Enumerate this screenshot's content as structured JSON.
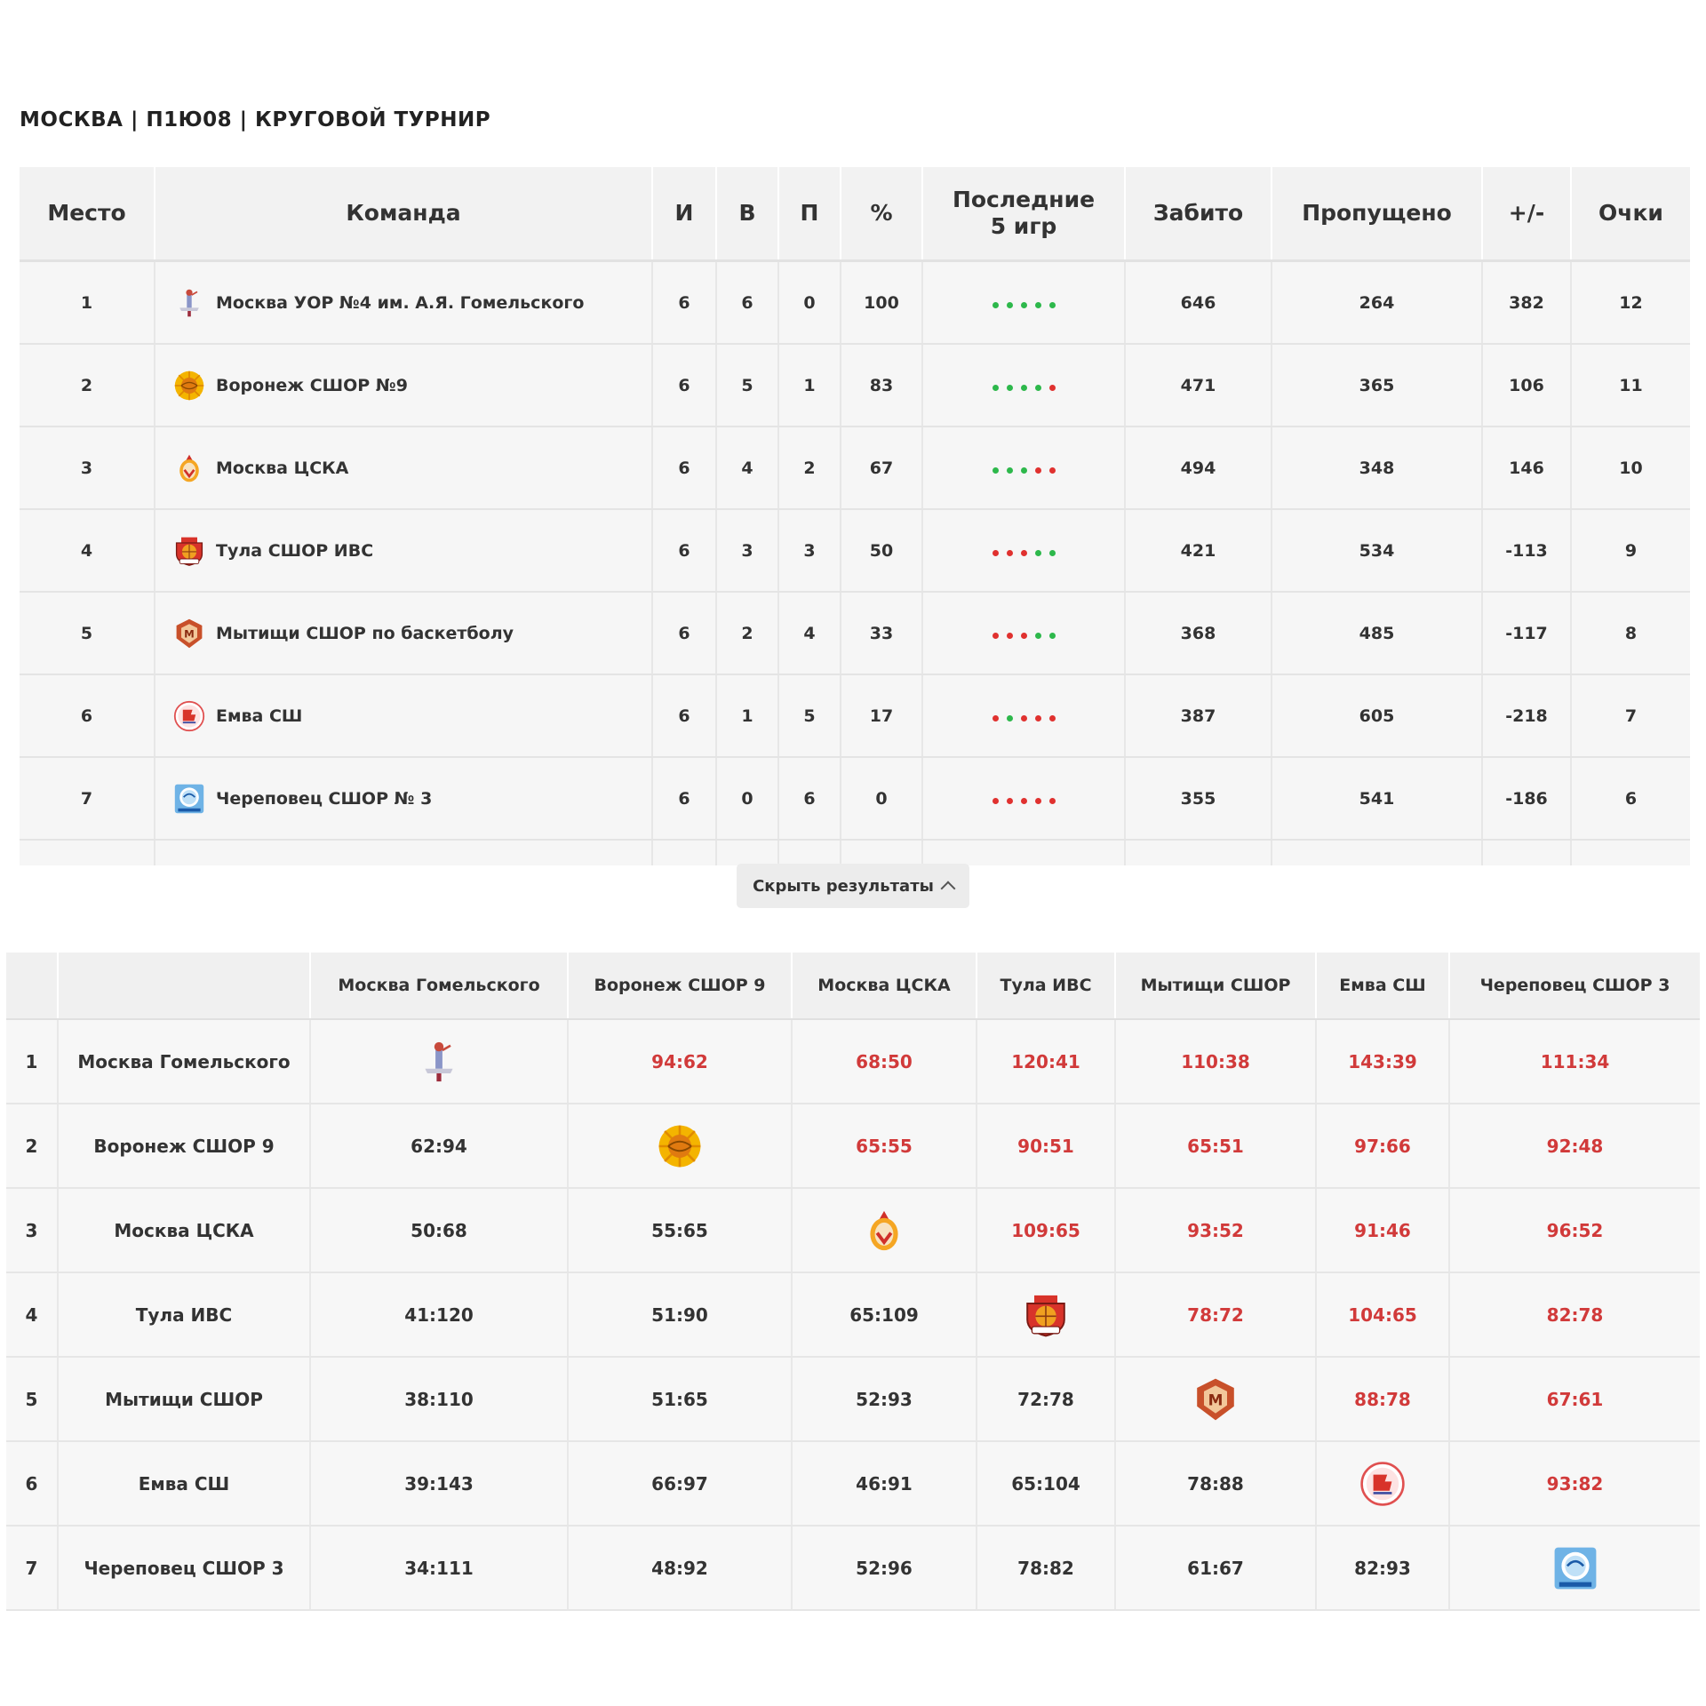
{
  "title": "МОСКВА | П1Ю08 | КРУГОВОЙ ТУРНИР",
  "standings": {
    "headers": {
      "place": "Место",
      "team": "Команда",
      "games": "И",
      "wins": "В",
      "losses": "П",
      "pct": "%",
      "last5_line1": "Последние",
      "last5_line2": "5 игр",
      "scored": "Забито",
      "conceded": "Пропущено",
      "diff": "+/-",
      "points": "Очки"
    },
    "rows": [
      {
        "place": "1",
        "logo": "gomelsky-logo",
        "team": "Москва УОР №4 им. А.Я. Гомельского",
        "games": "6",
        "wins": "6",
        "losses": "0",
        "pct": "100",
        "last5": [
          "W",
          "W",
          "W",
          "W",
          "W"
        ],
        "scored": "646",
        "conceded": "264",
        "diff": "382",
        "points": "12"
      },
      {
        "place": "2",
        "logo": "voronezh-logo",
        "team": "Воронеж СШОР №9",
        "games": "6",
        "wins": "5",
        "losses": "1",
        "pct": "83",
        "last5": [
          "W",
          "W",
          "W",
          "W",
          "L"
        ],
        "scored": "471",
        "conceded": "365",
        "diff": "106",
        "points": "11"
      },
      {
        "place": "3",
        "logo": "cska-logo",
        "team": "Москва ЦСКА",
        "games": "6",
        "wins": "4",
        "losses": "2",
        "pct": "67",
        "last5": [
          "W",
          "W",
          "W",
          "L",
          "L"
        ],
        "scored": "494",
        "conceded": "348",
        "diff": "146",
        "points": "10"
      },
      {
        "place": "4",
        "logo": "tula-logo",
        "team": "Тула СШОР ИВС",
        "games": "6",
        "wins": "3",
        "losses": "3",
        "pct": "50",
        "last5": [
          "L",
          "L",
          "L",
          "W",
          "W"
        ],
        "scored": "421",
        "conceded": "534",
        "diff": "-113",
        "points": "9"
      },
      {
        "place": "5",
        "logo": "mytishchi-logo",
        "team": "Мытищи СШОР по баскетболу",
        "games": "6",
        "wins": "2",
        "losses": "4",
        "pct": "33",
        "last5": [
          "L",
          "L",
          "L",
          "W",
          "W"
        ],
        "scored": "368",
        "conceded": "485",
        "diff": "-117",
        "points": "8"
      },
      {
        "place": "6",
        "logo": "emva-logo",
        "team": "Емва СШ",
        "games": "6",
        "wins": "1",
        "losses": "5",
        "pct": "17",
        "last5": [
          "L",
          "W",
          "L",
          "L",
          "L"
        ],
        "scored": "387",
        "conceded": "605",
        "diff": "-218",
        "points": "7"
      },
      {
        "place": "7",
        "logo": "cherepovets-logo",
        "team": "Череповец СШОР № 3",
        "games": "6",
        "wins": "0",
        "losses": "6",
        "pct": "0",
        "last5": [
          "L",
          "L",
          "L",
          "L",
          "L"
        ],
        "scored": "355",
        "conceded": "541",
        "diff": "-186",
        "points": "6"
      }
    ]
  },
  "toggle": {
    "label": "Скрыть результаты",
    "icon": "chevron-up-icon"
  },
  "cross": {
    "columns": [
      "Москва Гомельского",
      "Воронеж СШОР 9",
      "Москва ЦСКА",
      "Тула ИВС",
      "Мытищи СШОР",
      "Емва СШ",
      "Череповец СШОР 3"
    ],
    "rows": [
      {
        "num": "1",
        "team": "Москва Гомельского",
        "logo": "gomelsky-logo",
        "results": [
          "",
          "94:62",
          "68:50",
          "120:41",
          "110:38",
          "143:39",
          "111:34"
        ]
      },
      {
        "num": "2",
        "team": "Воронеж СШОР 9",
        "logo": "voronezh-logo",
        "results": [
          "62:94",
          "",
          "65:55",
          "90:51",
          "65:51",
          "97:66",
          "92:48"
        ]
      },
      {
        "num": "3",
        "team": "Москва ЦСКА",
        "logo": "cska-logo",
        "results": [
          "50:68",
          "55:65",
          "",
          "109:65",
          "93:52",
          "91:46",
          "96:52"
        ]
      },
      {
        "num": "4",
        "team": "Тула ИВС",
        "logo": "tula-logo",
        "results": [
          "41:120",
          "51:90",
          "65:109",
          "",
          "78:72",
          "104:65",
          "82:78"
        ]
      },
      {
        "num": "5",
        "team": "Мытищи СШОР",
        "logo": "mytishchi-logo",
        "results": [
          "38:110",
          "51:65",
          "52:93",
          "72:78",
          "",
          "88:78",
          "67:61"
        ]
      },
      {
        "num": "6",
        "team": "Емва СШ",
        "logo": "emva-logo",
        "results": [
          "39:143",
          "66:97",
          "46:91",
          "65:104",
          "78:88",
          "",
          "93:82"
        ]
      },
      {
        "num": "7",
        "team": "Череповец СШОР 3",
        "logo": "cherepovets-logo",
        "results": [
          "34:111",
          "48:92",
          "52:96",
          "78:82",
          "61:67",
          "82:93",
          ""
        ]
      }
    ]
  },
  "colors": {
    "win_dot": "#2db84b",
    "loss_dot": "#e0312f",
    "win_score": "#d13a3a",
    "header_bg": "#f2f2f2",
    "row_bg": "#f6f6f6"
  }
}
